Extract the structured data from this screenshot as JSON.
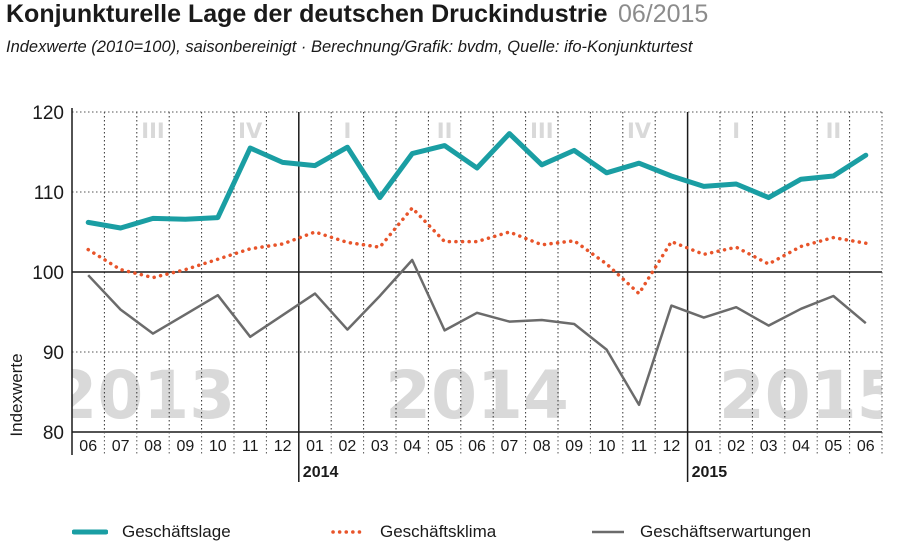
{
  "header": {
    "title": "Konjunkturelle Lage der deutschen Druckindustrie",
    "date": "06/2015",
    "subtitle": "Indexwerte (2010=100), saisonbereinigt · Berechnung/Grafik: bvdm, Quelle: ifo-Konjunkturtest"
  },
  "colors": {
    "geschaeftslage": "#1a9ea3",
    "geschaeftsklima": "#e8542a",
    "geschaeftserwartungen": "#6b6b6b",
    "watermark": "#d9d9d9"
  },
  "chart_data": {
    "type": "line",
    "ylabel": "Indexwerte",
    "ylim": [
      80,
      120
    ],
    "yticks": [
      "80",
      "90",
      "100",
      "110",
      "120"
    ],
    "categories": [
      "06",
      "07",
      "08",
      "09",
      "10",
      "11",
      "12",
      "01",
      "02",
      "03",
      "04",
      "05",
      "06",
      "07",
      "08",
      "09",
      "10",
      "11",
      "12",
      "01",
      "02",
      "03",
      "04",
      "05",
      "06"
    ],
    "years": [
      "2014",
      "2015"
    ],
    "quarters": [
      "III",
      "IV",
      "I",
      "II",
      "III",
      "IV",
      "I",
      "II"
    ],
    "watermarks": [
      "2013",
      "2014",
      "2015"
    ],
    "series": [
      {
        "name": "Geschäftslage",
        "values": [
          106.2,
          105.5,
          106.7,
          106.6,
          106.8,
          115.5,
          113.7,
          113.3,
          115.6,
          109.3,
          114.8,
          115.8,
          113.0,
          117.3,
          113.4,
          115.2,
          112.4,
          113.6,
          112.0,
          110.7,
          111.0,
          109.3,
          111.6,
          112.0,
          114.6
        ]
      },
      {
        "name": "Geschäftsklima",
        "values": [
          102.8,
          100.3,
          99.3,
          100.3,
          101.6,
          102.9,
          103.5,
          105.0,
          103.7,
          103.1,
          108.0,
          103.8,
          103.8,
          105.0,
          103.4,
          103.9,
          101.0,
          97.3,
          103.8,
          102.2,
          103.1,
          101.0,
          103.2,
          104.3,
          103.6
        ]
      },
      {
        "name": "Geschäftserwartungen",
        "values": [
          99.6,
          95.3,
          92.3,
          94.7,
          97.1,
          91.9,
          94.6,
          97.3,
          92.8,
          97.0,
          101.5,
          92.7,
          94.9,
          93.8,
          94.0,
          93.5,
          90.3,
          83.4,
          95.8,
          94.3,
          95.6,
          93.3,
          95.4,
          97.0,
          93.6
        ]
      }
    ]
  }
}
